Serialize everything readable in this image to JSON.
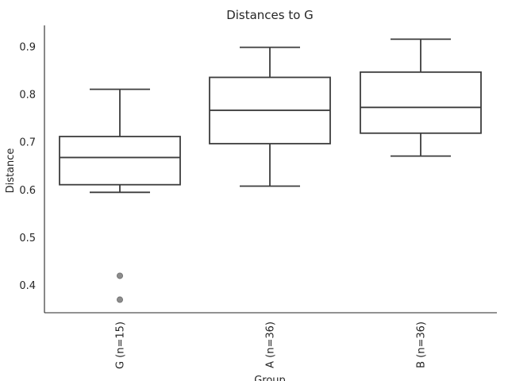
{
  "chart_data": {
    "type": "box",
    "title": "Distances to G",
    "xlabel": "Group",
    "ylabel": "Distance",
    "ylim": [
      0.34,
      0.94
    ],
    "yticks": [
      "0.4",
      "0.5",
      "0.6",
      "0.7",
      "0.8",
      "0.9"
    ],
    "grid": false,
    "categories": [
      "G (n=15)",
      "A (n=36)",
      "B (n=36)"
    ],
    "boxes": [
      {
        "whisker_low": 0.595,
        "q1": 0.611,
        "median": 0.668,
        "q3": 0.712,
        "whisker_high": 0.811,
        "outliers": [
          0.42,
          0.37
        ]
      },
      {
        "whisker_low": 0.608,
        "q1": 0.697,
        "median": 0.767,
        "q3": 0.836,
        "whisker_high": 0.899,
        "outliers": []
      },
      {
        "whisker_low": 0.671,
        "q1": 0.719,
        "median": 0.773,
        "q3": 0.847,
        "whisker_high": 0.916,
        "outliers": []
      }
    ]
  }
}
